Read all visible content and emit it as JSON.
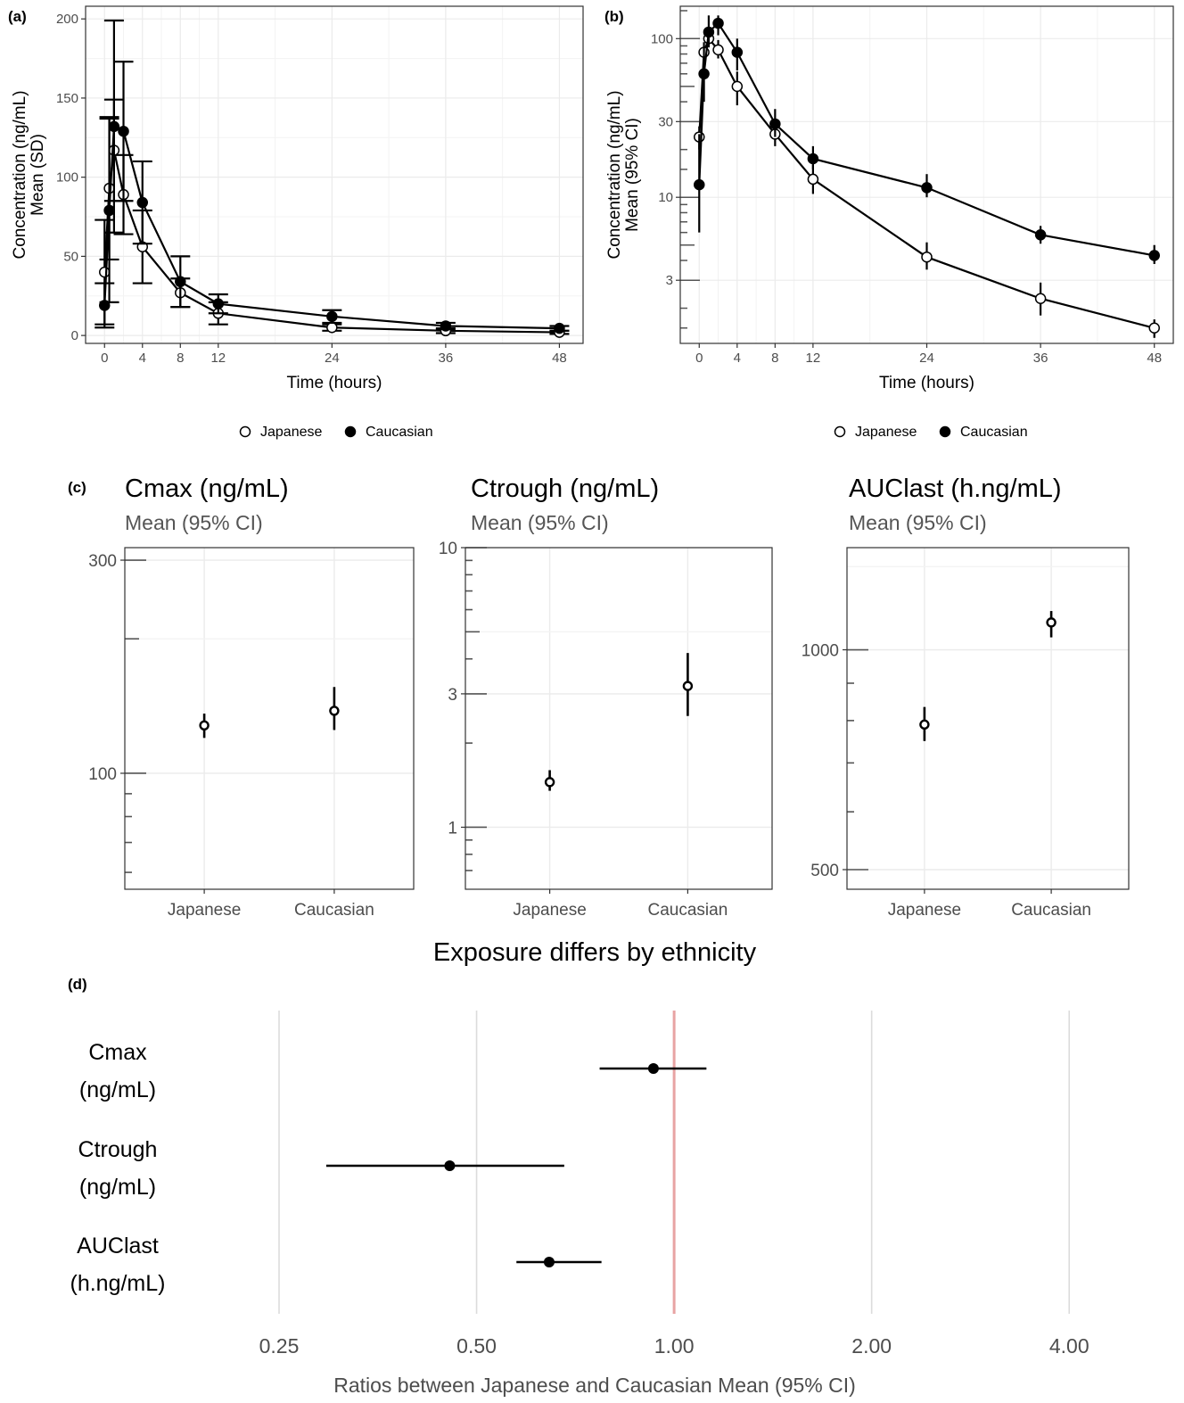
{
  "chart_data": [
    {
      "panel": "(a)",
      "type": "line",
      "xlabel": "Time (hours)",
      "ylabel_lines": [
        "Concentration (ng/mL)",
        "Mean (SD)"
      ],
      "x_ticks": [
        0,
        4,
        8,
        12,
        24,
        36,
        48
      ],
      "xlim": [
        -2,
        50.5
      ],
      "y_ticks": [
        0,
        50,
        100,
        150,
        200
      ],
      "ylim": [
        -5,
        208
      ],
      "grid": true,
      "legend_position": "bottom",
      "series": [
        {
          "name": "Japanese",
          "marker": "open-circle",
          "x": [
            0,
            0.5,
            1,
            2,
            4,
            8,
            12,
            24,
            36,
            48
          ],
          "y": [
            40,
            93,
            117,
            89,
            56,
            27,
            14,
            5,
            3,
            2
          ],
          "err": [
            33,
            45,
            32,
            25,
            23,
            9,
            7,
            2,
            1.5,
            1
          ]
        },
        {
          "name": "Caucasian",
          "marker": "filled-circle",
          "x": [
            0,
            0.5,
            1,
            2,
            4,
            8,
            12,
            24,
            36,
            48
          ],
          "y": [
            19,
            79,
            132,
            129,
            84,
            34,
            20,
            12,
            6,
            4.5
          ],
          "err": [
            14,
            58,
            67,
            44,
            26,
            16,
            6,
            4,
            2,
            1.5
          ]
        }
      ]
    },
    {
      "panel": "(b)",
      "type": "line",
      "xlabel": "Time (hours)",
      "ylabel_lines": [
        "Concentration (ng/mL)",
        "Mean (95% CI)"
      ],
      "y_scale": "log",
      "x_ticks": [
        0,
        4,
        8,
        12,
        24,
        36,
        48
      ],
      "xlim": [
        -2,
        50
      ],
      "y_ticks": [
        3,
        10,
        30,
        100
      ],
      "ylim": [
        1.2,
        160
      ],
      "grid": true,
      "legend_position": "bottom",
      "series": [
        {
          "name": "Japanese",
          "marker": "open-circle",
          "x": [
            0,
            0.5,
            1,
            2,
            4,
            8,
            12,
            24,
            36,
            48
          ],
          "y": [
            24,
            82,
            100,
            85,
            50,
            25,
            13,
            4.2,
            2.3,
            1.5
          ],
          "lo": [
            20,
            70,
            88,
            75,
            38,
            21,
            10.5,
            3.5,
            1.8,
            1.3
          ],
          "hi": [
            28,
            95,
            112,
            98,
            62,
            29,
            16,
            5.2,
            2.9,
            1.7
          ]
        },
        {
          "name": "Caucasian",
          "marker": "filled-circle",
          "x": [
            0,
            0.5,
            1,
            2,
            4,
            8,
            12,
            24,
            36,
            48
          ],
          "y": [
            12,
            60,
            110,
            125,
            82,
            29,
            17.5,
            11.5,
            5.8,
            4.3
          ],
          "lo": [
            6,
            40,
            90,
            105,
            63,
            24,
            15,
            10,
            5.1,
            3.8
          ],
          "hi": [
            25,
            90,
            140,
            140,
            100,
            36,
            21,
            14,
            6.6,
            5
          ]
        }
      ]
    },
    {
      "panel": "(c)",
      "type": "scatter",
      "title": "Cmax (ng/mL)",
      "subtitle": "Mean (95% CI)",
      "y_scale": "log",
      "categories": [
        "Japanese",
        "Caucasian"
      ],
      "y_ticks": [
        100,
        300
      ],
      "ylim": [
        55,
        320
      ],
      "mean": [
        128,
        138
      ],
      "lo": [
        120,
        125
      ],
      "hi": [
        136,
        156
      ],
      "grid": true
    },
    {
      "panel": "(c)",
      "type": "scatter",
      "title": "Ctrough (ng/mL)",
      "subtitle": "Mean (95% CI)",
      "y_scale": "log",
      "categories": [
        "Japanese",
        "Caucasian"
      ],
      "y_ticks": [
        1,
        3,
        10
      ],
      "ylim": [
        0.6,
        10
      ],
      "mean": [
        1.45,
        3.2
      ],
      "lo": [
        1.35,
        2.5
      ],
      "hi": [
        1.6,
        4.2
      ],
      "grid": true
    },
    {
      "panel": "(c)",
      "type": "scatter",
      "title": "AUClast (h.ng/mL)",
      "subtitle": "Mean (95% CI)",
      "y_scale": "log",
      "categories": [
        "Japanese",
        "Caucasian"
      ],
      "y_ticks": [
        500,
        1000
      ],
      "ylim": [
        470,
        1380
      ],
      "mean": [
        790,
        1090
      ],
      "lo": [
        750,
        1040
      ],
      "hi": [
        835,
        1130
      ],
      "grid": true
    },
    {
      "panel": "(d)",
      "type": "scatter",
      "title": "Exposure differs by ethnicity",
      "xlabel": "Ratios between Japanese and Caucasian Mean (95% CI)",
      "x_scale": "log2",
      "x_ticks": [
        0.25,
        0.5,
        1,
        2,
        4
      ],
      "x_tick_labels": [
        "0.25",
        "0.50",
        "1.00",
        "2.00",
        "4.00"
      ],
      "xlim": [
        0.18,
        5.8
      ],
      "reference_line": 1,
      "reference_color": "#e8a3a3",
      "categories": [
        [
          "Cmax",
          "(ng/mL)"
        ],
        [
          "Ctrough",
          "(ng/mL)"
        ],
        [
          "AUClast",
          "(h.ng/mL)"
        ]
      ],
      "ratio": [
        0.93,
        0.455,
        0.645
      ],
      "lo": [
        0.77,
        0.295,
        0.575
      ],
      "hi": [
        1.12,
        0.68,
        0.775
      ],
      "grid": true
    }
  ],
  "panel_labels": [
    "(a)",
    "(b)",
    "(c)",
    "(d)"
  ]
}
